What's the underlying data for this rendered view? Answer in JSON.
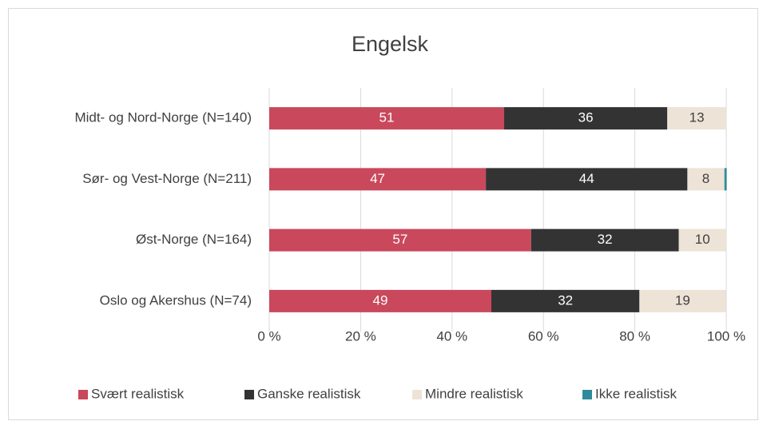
{
  "chart_data": {
    "type": "bar",
    "orientation": "horizontal",
    "stacked": true,
    "title": "Engelsk",
    "categories": [
      "Midt- og Nord-Norge (N=140)",
      "Sør- og Vest-Norge (N=211)",
      "Øst-Norge (N=164)",
      "Oslo og Akershus (N=74)"
    ],
    "series": [
      {
        "name": "Svært realistisk",
        "color": "#c9485b",
        "values": [
          51.4,
          47.4,
          57.3,
          48.6
        ],
        "value_labels": [
          "51",
          "47",
          "57",
          "49"
        ]
      },
      {
        "name": "Ganske realistisk",
        "color": "#333333",
        "values": [
          35.7,
          44.1,
          32.3,
          32.4
        ],
        "value_labels": [
          "36",
          "44",
          "32",
          "32"
        ]
      },
      {
        "name": "Mindre realistisk",
        "color": "#ede3d6",
        "values": [
          12.9,
          8.1,
          10.4,
          18.9
        ],
        "value_labels": [
          "13",
          "8",
          "10",
          "19"
        ]
      },
      {
        "name": "Ikke realistisk",
        "color": "#2e8b9a",
        "values": [
          0,
          0.5,
          0,
          0
        ]
      }
    ],
    "xlim": [
      0,
      100
    ],
    "xticks": [
      {
        "value": 0,
        "label": "0 %"
      },
      {
        "value": 20,
        "label": "20 %"
      },
      {
        "value": 40,
        "label": "40 %"
      },
      {
        "value": 60,
        "label": "60 %"
      },
      {
        "value": 80,
        "label": "80 %"
      },
      {
        "value": 100,
        "label": "100 %"
      }
    ],
    "grid": true,
    "legend": "bottom"
  }
}
